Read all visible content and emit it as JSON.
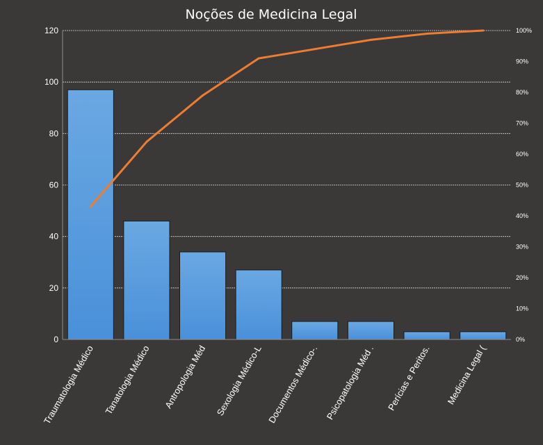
{
  "chart_data": {
    "type": "bar",
    "title": "Noções de Medicina Legal",
    "categories": [
      "Traumatologia Médico",
      "Tanatologia Médico",
      "Antropologia Méd",
      "Sexologia Médico-L",
      "Documentos Médico-.",
      "Psicopatologia Méd .",
      "Perícias e Peritos.",
      "Medicina Legal ("
    ],
    "series": [
      {
        "type": "bar",
        "axis": "left",
        "values": [
          97,
          46,
          34,
          27,
          7,
          7,
          3,
          3
        ]
      },
      {
        "type": "line",
        "axis": "right",
        "values": [
          43,
          64,
          79,
          91,
          94,
          97,
          99,
          100
        ]
      }
    ],
    "y_left": {
      "lim": [
        0,
        120
      ],
      "ticks": [
        0,
        20,
        40,
        60,
        80,
        100,
        120
      ]
    },
    "y_right": {
      "lim": [
        0,
        100
      ],
      "ticks": [
        "0%",
        "10%",
        "20%",
        "30%",
        "40%",
        "50%",
        "60%",
        "70%",
        "80%",
        "90%",
        "100%"
      ]
    },
    "grid": true,
    "legend": "none",
    "colors": {
      "background": "#3b3937",
      "bar": "#4a90d9",
      "bar_top": "#6aa8e2",
      "line": "#ed7d31",
      "grid": "#d9d9d9",
      "text": "#ffffff"
    }
  }
}
